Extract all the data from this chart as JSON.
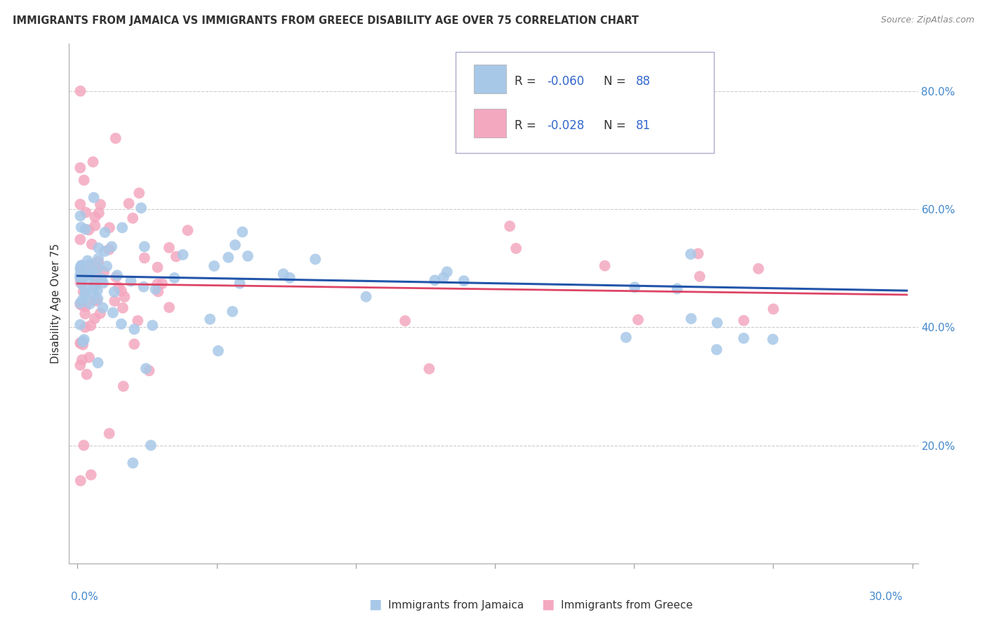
{
  "title": "IMMIGRANTS FROM JAMAICA VS IMMIGRANTS FROM GREECE DISABILITY AGE OVER 75 CORRELATION CHART",
  "source": "Source: ZipAtlas.com",
  "ylabel": "Disability Age Over 75",
  "legend_r_jamaica": "-0.060",
  "legend_n_jamaica": "88",
  "legend_r_greece": "-0.028",
  "legend_n_greece": "81",
  "color_jamaica": "#a8c8e8",
  "color_greece": "#f4a8c0",
  "trendline_jamaica_color": "#2255aa",
  "trendline_greece_color": "#dd4466",
  "text_color_dark": "#333333",
  "text_color_blue": "#3366cc",
  "axis_label_color": "#4488cc",
  "grid_color": "#cccccc",
  "legend_border_color": "#aaaacc"
}
